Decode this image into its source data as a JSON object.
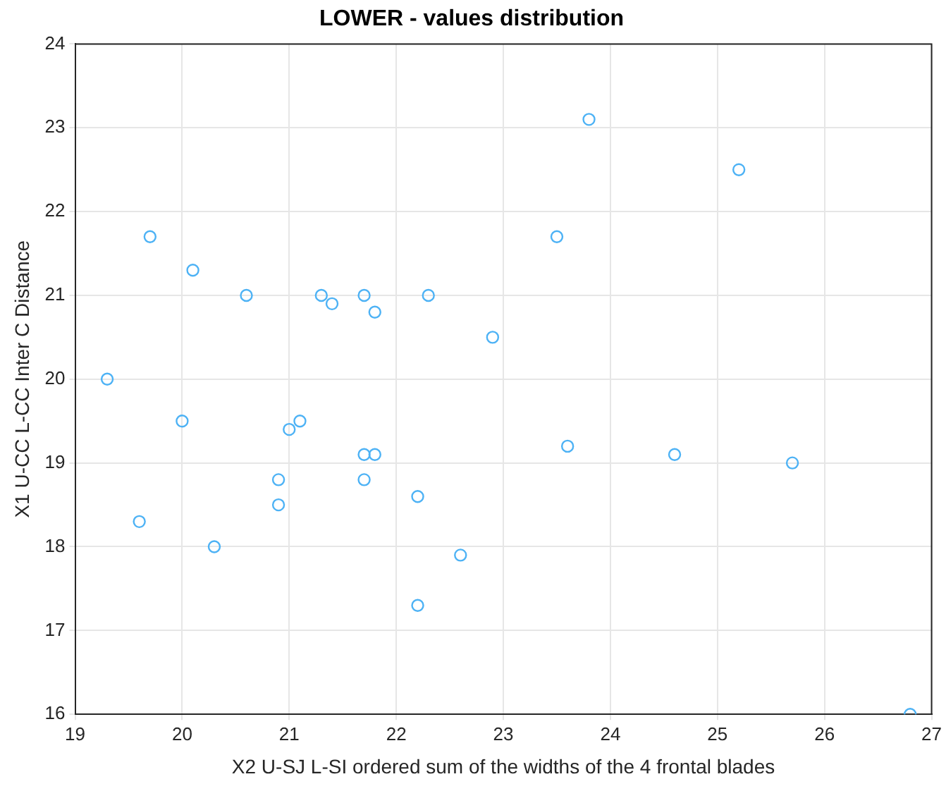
{
  "chart_data": {
    "type": "scatter",
    "title": "LOWER - values distribution",
    "xlabel": "X2 U-SJ L-SI ordered sum of the widths of the 4 frontal blades",
    "ylabel": "X1 U-CC L-CC Inter C Distance",
    "x": [
      19.3,
      19.6,
      19.7,
      20.0,
      20.1,
      20.3,
      20.6,
      20.9,
      20.9,
      21.0,
      21.1,
      21.3,
      21.4,
      21.7,
      21.7,
      21.7,
      21.8,
      21.8,
      22.2,
      22.2,
      22.3,
      22.6,
      22.9,
      23.5,
      23.6,
      23.8,
      24.6,
      25.2,
      25.7,
      26.8
    ],
    "values": [
      20.0,
      18.3,
      21.7,
      19.5,
      21.3,
      18.0,
      21.0,
      18.8,
      18.5,
      19.4,
      19.5,
      21.0,
      20.9,
      21.0,
      19.1,
      18.8,
      20.8,
      19.1,
      18.6,
      17.3,
      21.0,
      17.9,
      20.5,
      21.7,
      19.2,
      23.1,
      19.1,
      22.5,
      19.0,
      16.0
    ],
    "color": "#4db2f5",
    "marker": "circle",
    "xlim": [
      19,
      27
    ],
    "xticks": [
      19,
      20,
      21,
      22,
      23,
      24,
      25,
      26,
      27
    ],
    "ylim": [
      16,
      24
    ],
    "yticks": [
      16,
      17,
      18,
      19,
      20,
      21,
      22,
      23,
      24
    ],
    "grid": true,
    "legend": false
  }
}
